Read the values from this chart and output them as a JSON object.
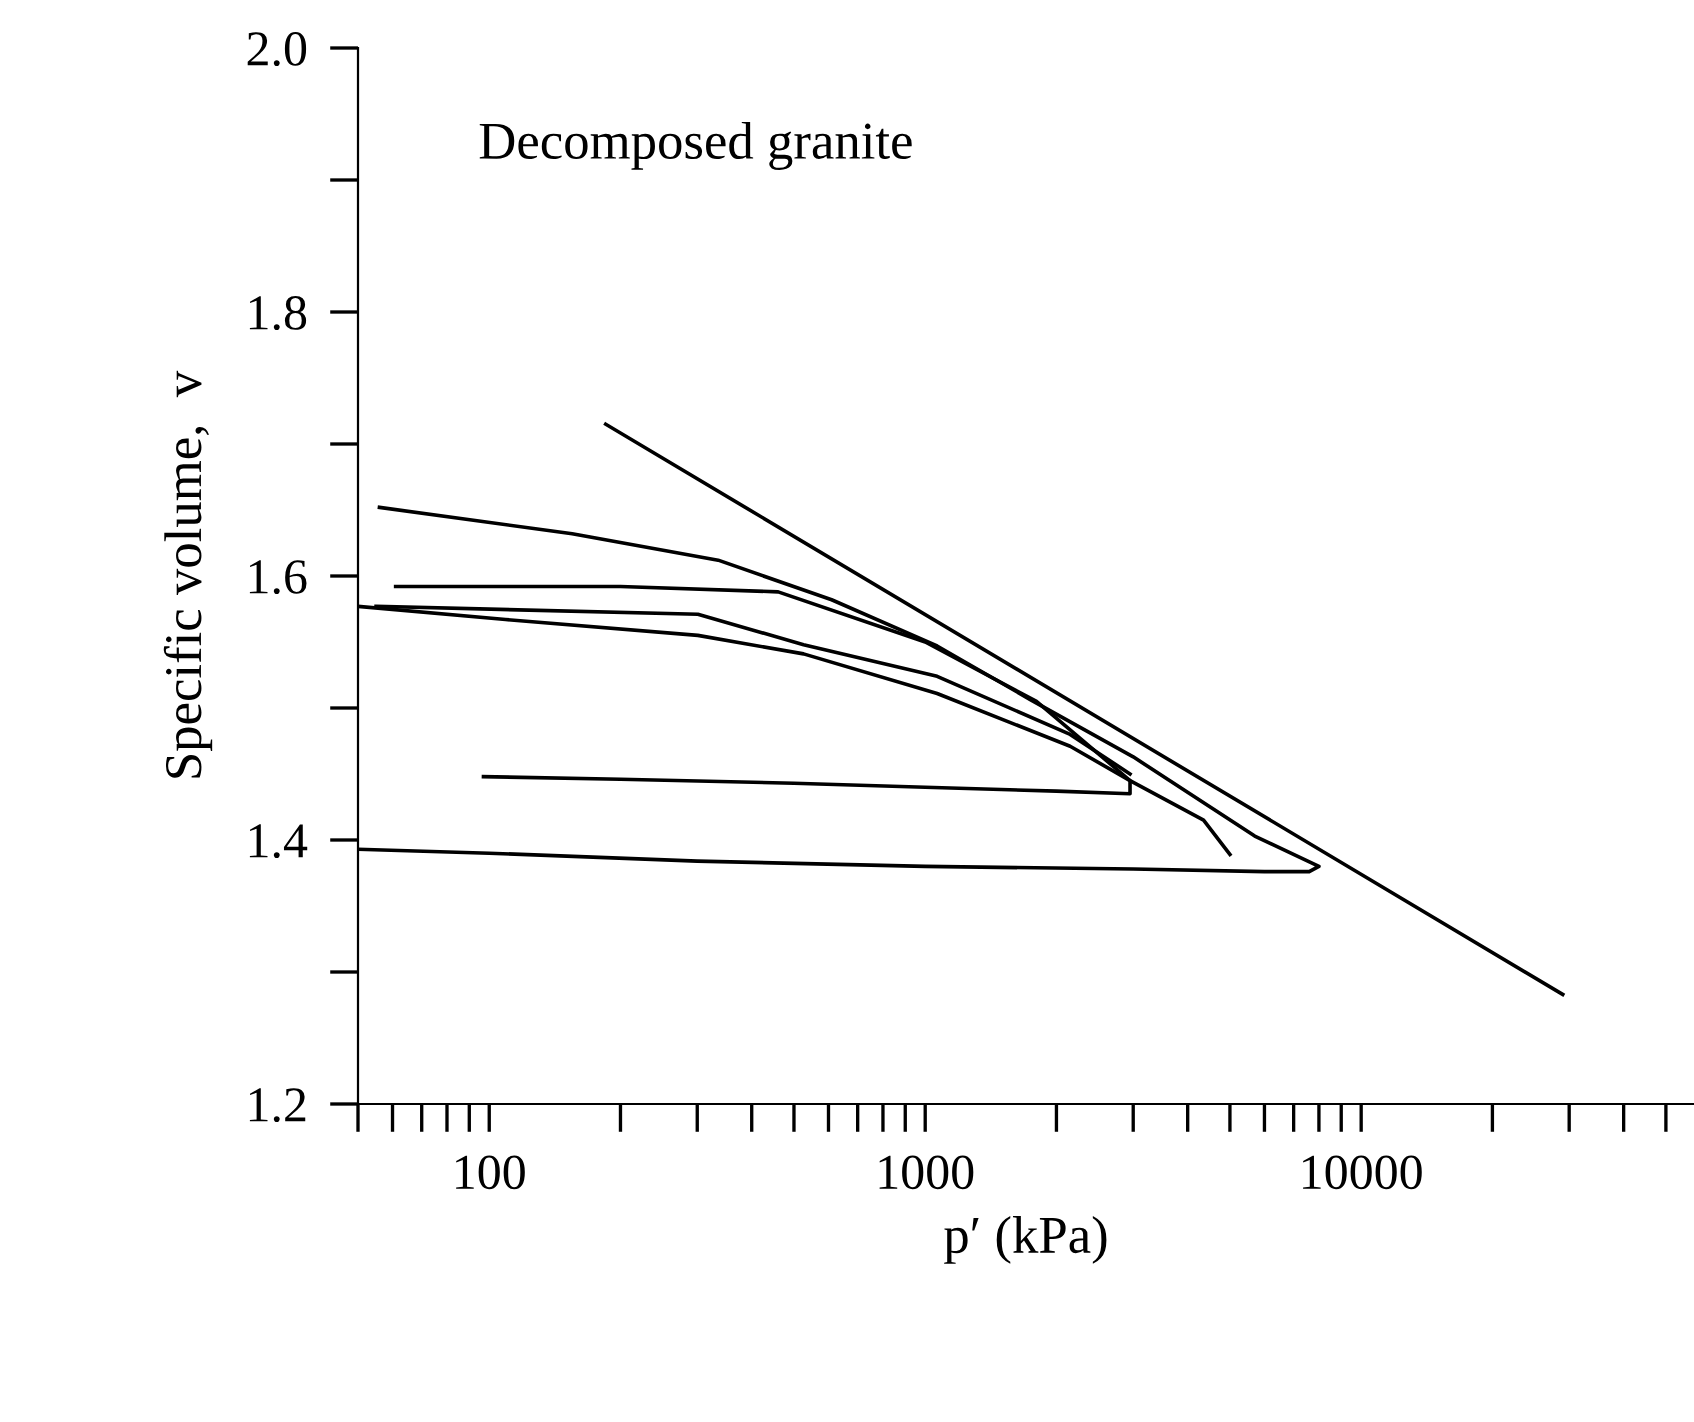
{
  "chart_data": {
    "type": "line",
    "xlabel": "p′ (kPa)",
    "ylabel": "Specific volume,  v",
    "annotations": [
      "Decomposed granite"
    ],
    "log": "x",
    "grid": false,
    "legend": false,
    "marker": "none",
    "line_style": "solid",
    "xlim": [
      50,
      58000
    ],
    "ylim": [
      1.2,
      2.0
    ],
    "xticks": [
      {
        "value": 50,
        "label": null
      },
      {
        "value": 60,
        "label": null
      },
      {
        "value": 70,
        "label": null
      },
      {
        "value": 80,
        "label": null
      },
      {
        "value": 90,
        "label": null
      },
      100,
      {
        "value": 200,
        "label": null
      },
      {
        "value": 300,
        "label": null
      },
      {
        "value": 400,
        "label": null
      },
      {
        "value": 500,
        "label": null
      },
      {
        "value": 600,
        "label": null
      },
      {
        "value": 700,
        "label": null
      },
      {
        "value": 800,
        "label": null
      },
      {
        "value": 900,
        "label": null
      },
      1000,
      {
        "value": 2000,
        "label": null
      },
      {
        "value": 3000,
        "label": null
      },
      {
        "value": 4000,
        "label": null
      },
      {
        "value": 5000,
        "label": null
      },
      {
        "value": 6000,
        "label": null
      },
      {
        "value": 7000,
        "label": null
      },
      {
        "value": 8000,
        "label": null
      },
      {
        "value": 9000,
        "label": null
      },
      10000,
      {
        "value": 20000,
        "label": null
      },
      {
        "value": 30000,
        "label": null
      },
      {
        "value": 40000,
        "label": null
      },
      {
        "value": 50000,
        "label": null
      }
    ],
    "yticks": [
      1.2,
      {
        "value": 1.3,
        "label": null
      },
      1.4,
      {
        "value": 1.5,
        "label": null
      },
      1.6,
      {
        "value": 1.7,
        "label": null
      },
      1.8,
      {
        "value": 1.9,
        "label": null
      },
      {
        "value": 2.0,
        "label": "2.0"
      }
    ],
    "series": [
      {
        "color": "#000000",
        "x": [
          185,
          29000
        ],
        "values": [
          1.715,
          1.283
        ]
      },
      {
        "color": "#000000",
        "x": [
          56,
          155,
          335,
          610,
          1065,
          1750,
          3000,
          5700,
          8000,
          7600,
          6000,
          3000,
          1000,
          300,
          100,
          50
        ],
        "values": [
          1.652,
          1.632,
          1.612,
          1.582,
          1.547,
          1.506,
          1.463,
          1.403,
          1.38,
          1.376,
          1.376,
          1.378,
          1.38,
          1.384,
          1.39,
          1.393
        ]
      },
      {
        "color": "#000000",
        "x": [
          61,
          200,
          460,
          1000,
          1800,
          2950,
          2950,
          2000,
          1000,
          500,
          200,
          97
        ],
        "values": [
          1.592,
          1.592,
          1.588,
          1.55,
          1.505,
          1.445,
          1.435,
          1.437,
          1.44,
          1.443,
          1.446,
          1.448
        ]
      },
      {
        "color": "#000000",
        "x": [
          50,
          109,
          301,
          526,
          1065,
          2150,
          2950,
          4350,
          5000
        ],
        "values": [
          1.577,
          1.567,
          1.555,
          1.541,
          1.511,
          1.471,
          1.445,
          1.415,
          1.389
        ]
      },
      {
        "color": "#000000",
        "x": [
          55,
          301,
          526,
          1065,
          2150,
          2950
        ],
        "values": [
          1.577,
          1.571,
          1.548,
          1.524,
          1.48,
          1.45
        ]
      }
    ]
  }
}
